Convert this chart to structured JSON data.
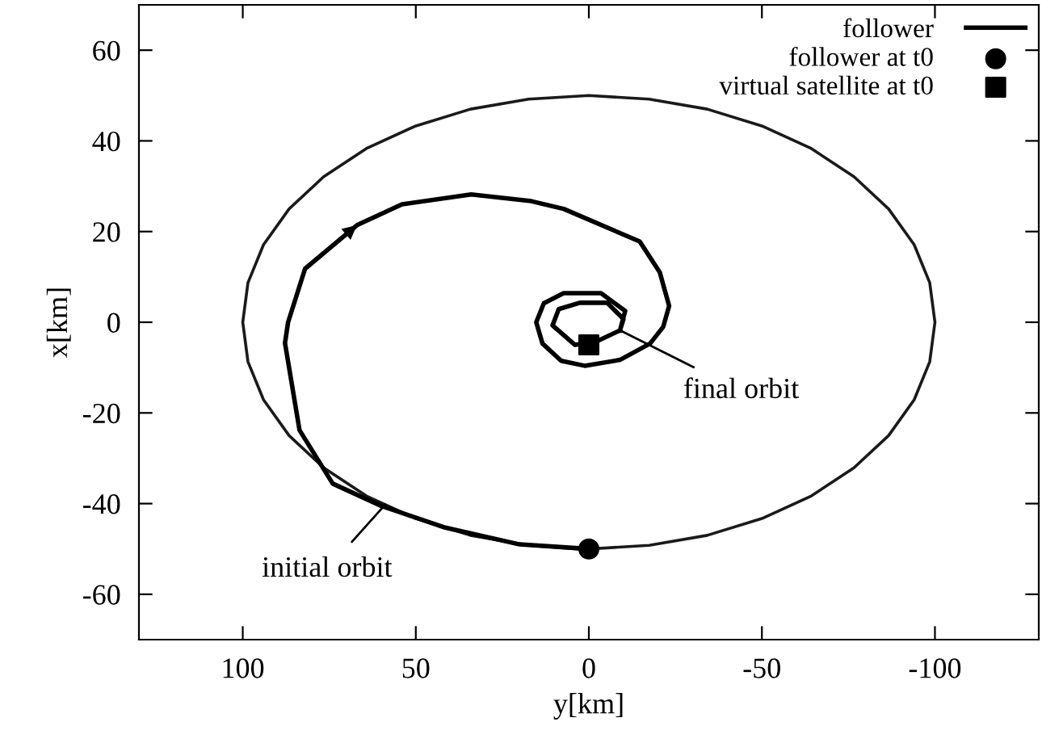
{
  "chart_data": {
    "type": "line",
    "xlabel": "y[km]",
    "ylabel": "x[km]",
    "xlim": [
      130,
      -130
    ],
    "xticks": [
      100,
      50,
      0,
      -50,
      -100
    ],
    "ylim": [
      -70,
      70
    ],
    "yticks": [
      -60,
      -40,
      -20,
      0,
      20,
      40,
      60
    ],
    "grid": false,
    "legend": "top right",
    "series": [
      {
        "color": "#1a1a1a",
        "line_style": "solid",
        "x": [
          0,
          -17.4,
          -34.2,
          -50,
          -64.3,
          -76.6,
          -86.6,
          -94,
          -98.5,
          -100,
          -98.5,
          -94,
          -86.6,
          -76.6,
          -64.3,
          -50,
          -34.2,
          -17.4,
          0,
          17.4,
          34.2,
          50,
          64.3,
          76.6,
          86.6,
          94,
          98.5,
          100,
          98.5,
          94,
          86.6,
          76.6,
          64.3,
          50,
          34.2,
          17.4,
          3
        ],
        "values": [
          -50,
          -49.2,
          -47,
          -43.3,
          -38.3,
          -32.1,
          -25,
          -17.1,
          -8.7,
          0,
          8.7,
          17.1,
          25,
          32.1,
          38.3,
          43.3,
          47,
          49.2,
          50,
          49.2,
          47,
          43.3,
          38.3,
          32.1,
          25,
          17.1,
          8.7,
          0,
          -8.7,
          -17.1,
          -25,
          -32.1,
          -38.3,
          -43.3,
          -47,
          -49.2,
          -50
        ]
      },
      {
        "name": "follower",
        "color": "#000000",
        "line_style": "solid",
        "x": [
          0,
          20,
          41.5,
          60,
          74,
          83.6,
          87.8,
          86.9,
          82,
          67,
          54,
          34,
          16.6,
          7.3,
          -14.7,
          -20.5,
          -23.2,
          -21.5,
          -17.7,
          -9,
          1.2,
          8,
          13.4,
          15.2,
          13,
          7.3,
          -3.5,
          -10.5,
          -9,
          -2,
          4,
          10.5,
          8.7,
          2.6,
          -5.3,
          -10,
          -9
        ],
        "values": [
          -50,
          -49,
          -45.3,
          -40.5,
          -35.6,
          -23.8,
          -4.6,
          0,
          11.8,
          21.4,
          26,
          28.2,
          26.7,
          25,
          17.8,
          11,
          3.6,
          -1,
          -4.7,
          -8.3,
          -9.6,
          -8.5,
          -4.7,
          0,
          4.2,
          6.4,
          6.4,
          2.5,
          -1.8,
          -4.3,
          -5,
          -0.7,
          2.9,
          4.3,
          4.3,
          0.7,
          -1.8
        ]
      },
      {
        "name": "follower at t0",
        "type": "scatter",
        "marker": "circle",
        "color": "#000000",
        "x": [
          0
        ],
        "values": [
          -50
        ]
      },
      {
        "name": "virtual satellite at t0",
        "type": "scatter",
        "marker": "square",
        "color": "#000000",
        "x": [
          0
        ],
        "values": [
          -5
        ]
      }
    ],
    "annotations": [
      {
        "text": "initial orbit",
        "x": 58.8,
        "y": -40.2
      },
      {
        "text": "final orbit",
        "x": -9,
        "y": -1.8
      }
    ]
  }
}
